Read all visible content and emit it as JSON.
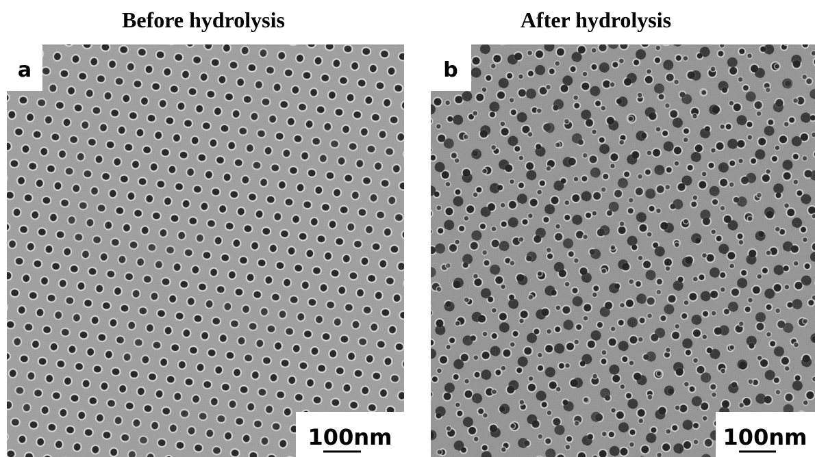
{
  "panels": [
    {
      "title": "Before hydrolysis",
      "label": "a",
      "scale_bar": "100nm"
    },
    {
      "title": "After hydrolysis",
      "label": "b",
      "scale_bar": "100nm"
    }
  ]
}
